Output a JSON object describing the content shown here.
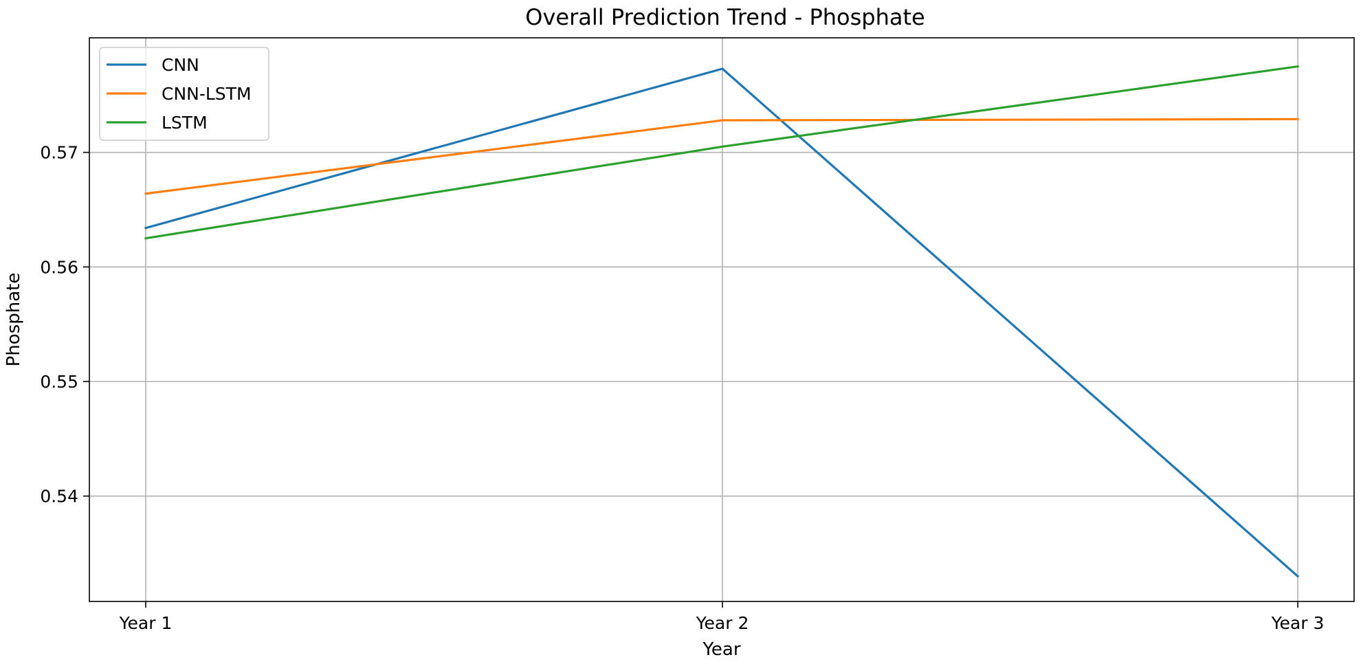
{
  "chart_data": {
    "type": "line",
    "title": "Overall Prediction Trend - Phosphate",
    "xlabel": "Year",
    "ylabel": "Phosphate",
    "categories": [
      "Year 1",
      "Year 2",
      "Year 3"
    ],
    "yticks": [
      0.54,
      0.55,
      0.56,
      0.57
    ],
    "ytick_labels": [
      "0.54",
      "0.55",
      "0.56",
      "0.57"
    ],
    "ylim": [
      0.5308,
      0.58
    ],
    "grid": true,
    "legend_position": "top-left",
    "series": [
      {
        "name": "CNN",
        "color": "#1f77b4",
        "values": [
          0.5634,
          0.5773,
          0.533
        ]
      },
      {
        "name": "CNN-LSTM",
        "color": "#ff7f0e",
        "values": [
          0.5664,
          0.5728,
          0.5729
        ]
      },
      {
        "name": "LSTM",
        "color": "#2ca02c",
        "values": [
          0.5625,
          0.5705,
          0.5775
        ]
      }
    ]
  }
}
